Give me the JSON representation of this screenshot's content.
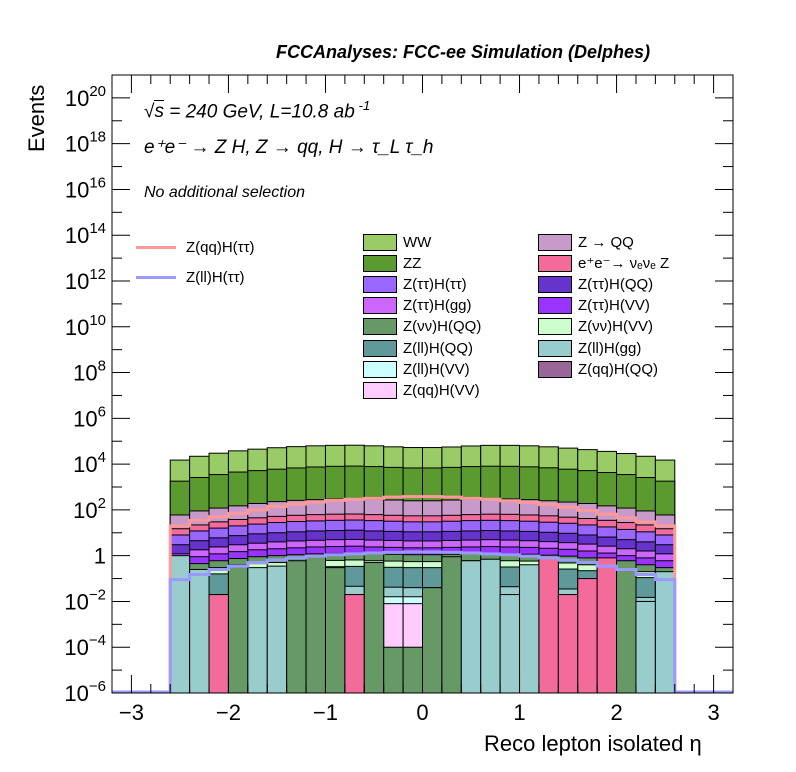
{
  "header": {
    "title": "FCCAnalyses: FCC-ee Simulation (Delphes)"
  },
  "annotations": {
    "energy_pre": "s",
    "energy_rest": " = 240 GeV, L=10.8 ab",
    "energy_sup": " -1",
    "process": "e⁺e⁻ → Z H, Z → qq, H → τ_L τ_h",
    "selection": "No additional selection"
  },
  "chart_data": {
    "type": "histogram-stacked",
    "xlabel": "Reco lepton isolated η",
    "ylabel": "Events",
    "xlim": [
      -3.2,
      3.2
    ],
    "ylim": [
      1e-06,
      1e+21
    ],
    "log_y": true,
    "x_ticks": [
      "−3",
      "−2",
      "−1",
      "0",
      "1",
      "2",
      "3"
    ],
    "y_ticks": [
      "10^-6",
      "10^-4",
      "10^-2",
      "1",
      "10^2",
      "10^4",
      "10^6",
      "10^8",
      "10^10",
      "10^12",
      "10^14",
      "10^16",
      "10^18",
      "10^20"
    ],
    "bin_edges": [
      -2.6,
      -2.4,
      -2.2,
      -2.0,
      -1.8,
      -1.6,
      -1.4,
      -1.2,
      -1.0,
      -0.8,
      -0.6,
      -0.4,
      -0.2,
      0.0,
      0.2,
      0.4,
      0.6,
      0.8,
      1.0,
      1.2,
      1.4,
      1.6,
      1.8,
      2.0,
      2.2,
      2.4,
      2.6
    ],
    "legend_position": "top-center",
    "stack_totals": {
      "name": "WW",
      "values": [
        15000,
        22000,
        30000,
        38000,
        45000,
        52000,
        58000,
        63000,
        66000,
        67000,
        63000,
        57000,
        53000,
        53000,
        56000,
        62000,
        66000,
        66000,
        63000,
        57000,
        50000,
        43000,
        36000,
        29000,
        22000,
        15000
      ]
    },
    "stack_layers": [
      {
        "name": "ZZ",
        "color": "#5a9a2e",
        "values": [
          1800,
          2600,
          3500,
          4500,
          5200,
          6000,
          6800,
          7500,
          8000,
          8200,
          7800,
          7200,
          6800,
          6800,
          7200,
          7800,
          8100,
          8000,
          7600,
          6900,
          6000,
          5200,
          4300,
          3500,
          2600,
          1800
        ]
      },
      {
        "name": "Z → QQ",
        "color": "#c89ac9",
        "values": [
          60,
          90,
          120,
          150,
          190,
          230,
          260,
          280,
          300,
          310,
          290,
          270,
          250,
          250,
          270,
          290,
          310,
          300,
          280,
          250,
          220,
          190,
          150,
          120,
          90,
          60
        ]
      },
      {
        "name": "e⁺e⁻→ νₑνₑ Z",
        "color": "#f26b9b",
        "values": [
          15,
          22,
          30,
          38,
          45,
          52,
          58,
          62,
          65,
          66,
          62,
          58,
          55,
          55,
          58,
          62,
          65,
          64,
          60,
          55,
          48,
          42,
          35,
          28,
          22,
          15
        ]
      },
      {
        "name": "Z(ττ)H(ττ)",
        "color": "#9966ff",
        "values": [
          8,
          12,
          16,
          20,
          24,
          28,
          31,
          33,
          35,
          36,
          34,
          32,
          30,
          30,
          32,
          34,
          35,
          34,
          32,
          29,
          26,
          22,
          18,
          14,
          11,
          8
        ]
      },
      {
        "name": "Z(ττ)H(QQ)",
        "color": "#6633cc",
        "values": [
          3,
          4.5,
          6,
          7.5,
          9,
          10,
          11,
          12,
          12.5,
          13,
          12,
          11.5,
          11,
          11,
          11.5,
          12,
          12.5,
          12,
          11.5,
          10.5,
          9.5,
          8,
          6.5,
          5,
          4,
          3
        ]
      },
      {
        "name": "Z(ττ)H(gg)",
        "color": "#cc66ff",
        "values": [
          1.2,
          1.8,
          2.4,
          3,
          3.5,
          4,
          4.4,
          4.7,
          5,
          5.1,
          4.8,
          4.6,
          4.4,
          4.4,
          4.6,
          4.8,
          5,
          4.8,
          4.5,
          4.1,
          3.7,
          3.2,
          2.6,
          2,
          1.6,
          1.2
        ]
      },
      {
        "name": "Z(ττ)H(VV)",
        "color": "#9933ff",
        "values": [
          0.6,
          0.9,
          1.2,
          1.5,
          1.8,
          2,
          2.2,
          2.4,
          2.5,
          2.6,
          2.4,
          2.3,
          2.2,
          2.2,
          2.3,
          2.4,
          2.5,
          2.4,
          2.3,
          2.1,
          1.9,
          1.6,
          1.3,
          1,
          0.8,
          0.6
        ]
      },
      {
        "name": "Z(νν)H(QQ)",
        "color": "#669966",
        "values": [
          0.3,
          0.45,
          0.6,
          0.75,
          0.9,
          1,
          1.1,
          1.2,
          1.25,
          1.3,
          1.2,
          1.15,
          1.1,
          1.1,
          1.15,
          1.2,
          1.25,
          1.2,
          1.15,
          1.05,
          0.95,
          0.8,
          0.65,
          0.5,
          0.4,
          0.3
        ]
      },
      {
        "name": "Z(νν)H(VV)",
        "color": "#ccffcc",
        "values": [
          0.15,
          0.22,
          0.3,
          0.38,
          0.45,
          0.5,
          0.55,
          0.6,
          0.62,
          0.65,
          0.6,
          0.58,
          0.55,
          0.55,
          0.58,
          0.6,
          0.62,
          0.6,
          0.58,
          0.52,
          0.48,
          0.4,
          0.32,
          0.25,
          0.2,
          0.15
        ]
      },
      {
        "name": "Z(ll)H(QQ)",
        "color": "#5f9999",
        "values": [
          0.08,
          0.12,
          0.16,
          0.2,
          0.24,
          0.27,
          0.3,
          0.32,
          0.33,
          0.34,
          0.32,
          0.31,
          0.3,
          0.3,
          0.31,
          0.32,
          0.33,
          0.32,
          0.31,
          0.28,
          0.26,
          0.22,
          0.18,
          0.14,
          0.11,
          0.08
        ]
      },
      {
        "name": "Z(ll)H(gg)",
        "color": "#99cccc",
        "values": [
          0.01,
          0.015,
          0.02,
          0.025,
          0.03,
          0.035,
          0.04,
          0.042,
          0.045,
          0.046,
          0.043,
          0.042,
          0.04,
          0.04,
          0.042,
          0.043,
          0.045,
          0.044,
          0.042,
          0.038,
          0.035,
          0.03,
          0.025,
          0.02,
          0.015,
          0.01
        ]
      },
      {
        "name": "Z(ll)H(VV)",
        "color": "#ccffff",
        "values": [
          0.004,
          0.006,
          0.008,
          0.01,
          0.012,
          0.014,
          0.016,
          0.017,
          0.018,
          0.018,
          0.017,
          0.016,
          0.016,
          0.016,
          0.016,
          0.017,
          0.018,
          0.018,
          0.017,
          0.015,
          0.014,
          0.012,
          0.01,
          0.008,
          0.006,
          0.004
        ]
      },
      {
        "name": "Z(qq)H(VV)",
        "color": "#ffccff",
        "values": [
          0.002,
          0.003,
          0.004,
          0.005,
          0.006,
          0.007,
          0.008,
          0.008,
          0.009,
          0.009,
          0.008,
          0.008,
          0.008,
          0.008,
          0.008,
          0.008,
          0.009,
          0.009,
          0.008,
          0.007,
          0.007,
          0.006,
          0.005,
          0.004,
          0.003,
          0.002
        ]
      },
      {
        "name": "Z(qq)H(QQ)",
        "color": "#996699",
        "values": [
          0,
          0,
          0,
          0,
          0,
          0,
          0,
          0,
          0,
          0,
          0,
          0,
          0,
          0,
          0,
          0,
          0,
          0,
          0,
          0,
          0,
          0.0003,
          0,
          0,
          0,
          0
        ]
      }
    ],
    "bottom_bins": [
      {
        "color": "#99cccc",
        "value": 1.0
      },
      {
        "color": "#99cccc",
        "value": 0.25
      },
      {
        "color": "#f26b9b",
        "value": 0.02
      },
      {
        "color": "#669966",
        "value": 0.4
      },
      {
        "color": "#99cccc",
        "value": 0.3
      },
      {
        "color": "#99cccc",
        "value": 0.35
      },
      {
        "color": "#669966",
        "value": 0.6
      },
      {
        "color": "#669966",
        "value": 0.9
      },
      {
        "color": "#669966",
        "value": 0.3
      },
      {
        "color": "#f26b9b",
        "value": 0.02
      },
      {
        "color": "#669966",
        "value": 0.5
      },
      {
        "color": "#669966",
        "value": 0.0001
      },
      {
        "color": "#669966",
        "value": 0.0001
      },
      {
        "color": "#669966",
        "value": 0.04
      },
      {
        "color": "#669966",
        "value": 0.9
      },
      {
        "color": "#99cccc",
        "value": 0.6
      },
      {
        "color": "#99cccc",
        "value": 0.7
      },
      {
        "color": "#99cccc",
        "value": 0.02
      },
      {
        "color": "#99cccc",
        "value": 0.4
      },
      {
        "color": "#f26b9b",
        "value": 0.8
      },
      {
        "color": "#f26b9b",
        "value": 0.02
      },
      {
        "color": "#f26b9b",
        "value": 0.1
      },
      {
        "color": "#f26b9b",
        "value": 0.8
      },
      {
        "color": "#669966",
        "value": 0.6
      },
      {
        "color": "#99cccc",
        "value": 0.01
      },
      {
        "color": "#99cccc",
        "value": 0.2
      }
    ],
    "overlay_series": [
      {
        "name": "Z(qq)H(ττ)",
        "color": "#ff9999",
        "values": [
          20,
          35,
          50,
          70,
          100,
          140,
          180,
          220,
          260,
          290,
          320,
          360,
          380,
          380,
          360,
          320,
          290,
          250,
          210,
          170,
          130,
          95,
          65,
          45,
          30,
          20
        ]
      },
      {
        "name": "Z(ll)H(ττ)",
        "color": "#9999ff",
        "values": [
          0.09,
          0.15,
          0.25,
          0.35,
          0.5,
          0.65,
          0.8,
          0.95,
          1.1,
          1.2,
          1.3,
          1.4,
          1.45,
          1.45,
          1.4,
          1.3,
          1.2,
          1.1,
          0.95,
          0.8,
          0.65,
          0.5,
          0.35,
          0.25,
          0.15,
          0.09
        ]
      }
    ]
  }
}
